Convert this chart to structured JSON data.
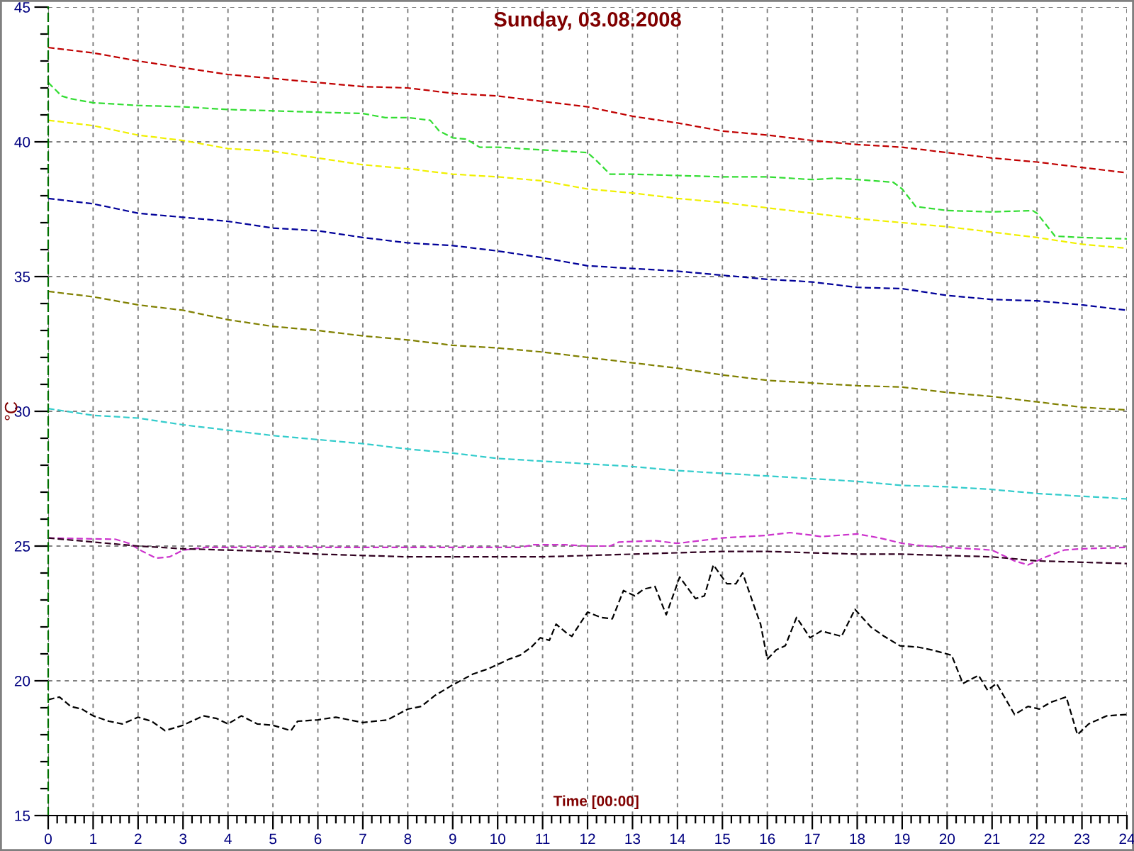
{
  "chart_data": {
    "type": "line",
    "title": "Sunday, 03.08.2008",
    "xlabel": "Time [00:00]",
    "ylabel": "°C",
    "xlim": [
      0,
      24
    ],
    "ylim": [
      15,
      45
    ],
    "xticks": [
      0,
      1,
      2,
      3,
      4,
      5,
      6,
      7,
      8,
      9,
      10,
      11,
      12,
      13,
      14,
      15,
      16,
      17,
      18,
      19,
      20,
      21,
      22,
      23,
      24
    ],
    "yticks": [
      15,
      20,
      25,
      30,
      35,
      40,
      45
    ],
    "grid": true,
    "line_style": "dashed",
    "series": [
      {
        "color": "#c00000",
        "x": [
          0,
          1,
          2,
          3,
          4,
          5,
          6,
          7,
          8,
          9,
          10,
          11,
          12,
          13,
          14,
          15,
          16,
          17,
          18,
          19,
          20,
          21,
          22,
          23,
          24
        ],
        "values": [
          43.5,
          43.3,
          43.0,
          42.75,
          42.5,
          42.35,
          42.2,
          42.05,
          42.0,
          41.8,
          41.7,
          41.5,
          41.3,
          40.95,
          40.7,
          40.4,
          40.25,
          40.05,
          39.9,
          39.8,
          39.6,
          39.4,
          39.25,
          39.05,
          38.85
        ]
      },
      {
        "color": "#33dd33",
        "x": [
          0,
          0.3,
          0.5,
          1,
          2,
          3,
          4,
          5,
          6,
          7,
          7.5,
          8,
          8.5,
          8.7,
          9,
          9.3,
          9.6,
          10,
          11,
          11.55,
          12,
          12.2,
          12.5,
          13,
          14,
          15,
          16,
          17,
          17.5,
          18,
          18.8,
          19,
          19.3,
          20,
          21,
          21.9,
          22,
          22.4,
          23,
          24
        ],
        "values": [
          42.2,
          41.7,
          41.6,
          41.45,
          41.35,
          41.3,
          41.2,
          41.15,
          41.1,
          41.05,
          40.9,
          40.9,
          40.8,
          40.4,
          40.15,
          40.1,
          39.8,
          39.8,
          39.7,
          39.65,
          39.6,
          39.3,
          38.8,
          38.8,
          38.75,
          38.7,
          38.7,
          38.6,
          38.65,
          38.6,
          38.5,
          38.25,
          37.6,
          37.45,
          37.4,
          37.45,
          37.35,
          36.5,
          36.45,
          36.4
        ]
      },
      {
        "color": "#f0f000",
        "x": [
          0,
          1,
          2,
          3,
          4,
          5,
          6,
          7,
          8,
          9,
          10,
          11,
          12,
          13,
          14,
          15,
          16,
          17,
          18,
          19,
          20,
          21,
          22,
          23,
          24
        ],
        "values": [
          40.8,
          40.6,
          40.25,
          40.05,
          39.75,
          39.65,
          39.4,
          39.15,
          39.0,
          38.8,
          38.7,
          38.55,
          38.25,
          38.1,
          37.9,
          37.75,
          37.55,
          37.35,
          37.15,
          37.0,
          36.85,
          36.65,
          36.45,
          36.2,
          36.05
        ]
      },
      {
        "color": "#000099",
        "x": [
          0,
          1,
          2,
          3,
          4,
          5,
          6,
          7,
          8,
          9,
          10,
          11,
          12,
          13,
          14,
          15,
          16,
          17,
          18,
          19,
          20,
          21,
          22,
          23,
          24
        ],
        "values": [
          37.9,
          37.7,
          37.35,
          37.2,
          37.05,
          36.8,
          36.7,
          36.45,
          36.25,
          36.15,
          35.95,
          35.7,
          35.4,
          35.3,
          35.2,
          35.05,
          34.9,
          34.8,
          34.6,
          34.55,
          34.3,
          34.15,
          34.1,
          33.95,
          33.75
        ]
      },
      {
        "color": "#808000",
        "x": [
          0,
          1,
          2,
          3,
          4,
          5,
          6,
          7,
          8,
          9,
          10,
          11,
          12,
          13,
          14,
          15,
          16,
          17,
          18,
          19,
          20,
          21,
          22,
          23,
          24
        ],
        "values": [
          34.45,
          34.25,
          33.95,
          33.75,
          33.4,
          33.15,
          33.0,
          32.8,
          32.65,
          32.45,
          32.35,
          32.2,
          32.0,
          31.8,
          31.6,
          31.35,
          31.15,
          31.05,
          30.95,
          30.9,
          30.7,
          30.55,
          30.35,
          30.15,
          30.05
        ]
      },
      {
        "color": "#33cccc",
        "x": [
          0,
          1,
          2,
          3,
          4,
          5,
          6,
          7,
          8,
          9,
          10,
          11,
          12,
          13,
          14,
          15,
          16,
          17,
          18,
          19,
          20,
          21,
          22,
          23,
          24
        ],
        "values": [
          30.1,
          29.85,
          29.75,
          29.5,
          29.3,
          29.1,
          28.95,
          28.8,
          28.6,
          28.45,
          28.25,
          28.15,
          28.05,
          27.95,
          27.8,
          27.7,
          27.6,
          27.5,
          27.4,
          27.25,
          27.2,
          27.1,
          26.95,
          26.85,
          26.75
        ]
      },
      {
        "color": "#cc33cc",
        "x": [
          0,
          1.5,
          1.8,
          2.1,
          2.4,
          2.7,
          3,
          3.5,
          4,
          5,
          6,
          7,
          8,
          9,
          10,
          10.5,
          10.8,
          11.5,
          12,
          12.5,
          12.7,
          13.5,
          14,
          14.5,
          15,
          15.5,
          16,
          16.5,
          17,
          17.2,
          18,
          18.5,
          19,
          19.5,
          20,
          21,
          21.5,
          21.8,
          22.2,
          22.6,
          23,
          24
        ],
        "values": [
          25.3,
          25.25,
          25.1,
          24.8,
          24.55,
          24.6,
          24.85,
          24.95,
          24.95,
          24.95,
          24.95,
          24.95,
          24.95,
          24.95,
          24.95,
          24.95,
          25.05,
          25.05,
          25.0,
          25.0,
          25.15,
          25.2,
          25.1,
          25.2,
          25.3,
          25.35,
          25.4,
          25.5,
          25.4,
          25.35,
          25.45,
          25.3,
          25.1,
          25.0,
          24.95,
          24.85,
          24.45,
          24.3,
          24.6,
          24.85,
          24.9,
          24.95
        ]
      },
      {
        "color": "#300020",
        "x": [
          0,
          1,
          2,
          3,
          4,
          5,
          6,
          7,
          8,
          9,
          10,
          11,
          12,
          13,
          14,
          15,
          16,
          17,
          18,
          19,
          20,
          21,
          22,
          23,
          24
        ],
        "values": [
          25.3,
          25.15,
          25.0,
          24.9,
          24.85,
          24.8,
          24.7,
          24.65,
          24.6,
          24.6,
          24.6,
          24.6,
          24.65,
          24.7,
          24.75,
          24.8,
          24.8,
          24.75,
          24.7,
          24.7,
          24.65,
          24.6,
          24.45,
          24.4,
          24.35
        ]
      },
      {
        "color": "#000000",
        "x": [
          0,
          0.25,
          0.5,
          0.75,
          1.0,
          1.35,
          1.65,
          2.0,
          2.3,
          2.6,
          3.0,
          3.45,
          3.75,
          4.0,
          4.3,
          4.65,
          5.0,
          5.4,
          5.55,
          6.0,
          6.4,
          7.0,
          7.55,
          8.0,
          8.3,
          8.6,
          9.0,
          9.45,
          9.8,
          10.25,
          10.5,
          10.75,
          10.95,
          11.15,
          11.3,
          11.55,
          11.65,
          12.0,
          12.3,
          12.55,
          12.8,
          13.05,
          13.25,
          13.5,
          13.75,
          14.05,
          14.4,
          14.6,
          14.8,
          15.1,
          15.3,
          15.45,
          15.7,
          15.85,
          16.0,
          16.2,
          16.4,
          16.65,
          16.95,
          17.2,
          17.65,
          17.95,
          18.3,
          18.6,
          18.95,
          19.35,
          19.65,
          20.1,
          20.35,
          20.7,
          20.9,
          21.1,
          21.5,
          21.8,
          22.05,
          22.3,
          22.65,
          22.9,
          23.15,
          23.55,
          24.0
        ],
        "values": [
          19.3,
          19.4,
          19.05,
          18.95,
          18.7,
          18.5,
          18.4,
          18.65,
          18.5,
          18.15,
          18.35,
          18.7,
          18.6,
          18.4,
          18.7,
          18.4,
          18.35,
          18.15,
          18.5,
          18.55,
          18.65,
          18.45,
          18.55,
          18.95,
          19.05,
          19.45,
          19.85,
          20.25,
          20.45,
          20.8,
          20.95,
          21.25,
          21.6,
          21.5,
          22.1,
          21.75,
          21.65,
          22.55,
          22.35,
          22.3,
          23.35,
          23.15,
          23.4,
          23.5,
          22.45,
          23.85,
          23.05,
          23.15,
          24.3,
          23.6,
          23.6,
          24.0,
          22.8,
          22.1,
          20.8,
          21.15,
          21.3,
          22.35,
          21.6,
          21.85,
          21.65,
          22.65,
          22.0,
          21.65,
          21.3,
          21.25,
          21.15,
          20.95,
          19.9,
          20.2,
          19.65,
          19.9,
          18.75,
          19.05,
          18.95,
          19.2,
          19.4,
          18.0,
          18.4,
          18.7,
          18.75
        ]
      }
    ]
  }
}
